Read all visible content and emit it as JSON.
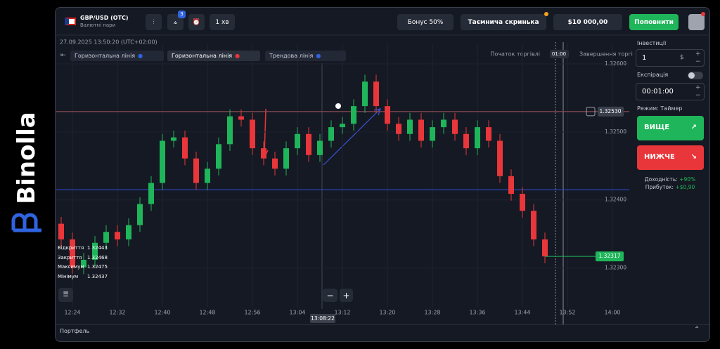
{
  "brand": "Binolla",
  "header": {
    "pair": "GBP/USD (OTC)",
    "pair_sub": "Валютні пари",
    "alerts_badge": "3",
    "timeframe": "1 хв",
    "bonus": "Бонус 50%",
    "mystery_box": "Таємнича скринька",
    "balance": "$10 000,00",
    "deposit": "Поповнити"
  },
  "chart_data": {
    "type": "candlestick",
    "datetime": "27.09.2025  13:50:20  (UTC+02:00)",
    "drawings": [
      "Горизонтальна лінія",
      "Горизонтальна лінія",
      "Трендова лінія"
    ],
    "trade_start": "Початок торгівлі",
    "timer": "01:00",
    "trade_end": "Завершення торгі",
    "x_labels": [
      "12:24",
      "12:32",
      "12:40",
      "12:48",
      "12:56",
      "13:04",
      "13:12",
      "13:20",
      "13:28",
      "13:36",
      "13:44",
      "13:52",
      "14:00"
    ],
    "crosshair_time": "13:08:22",
    "ylim": [
      1.3225,
      1.3263
    ],
    "yticks": [
      {
        "value": 1.326,
        "label": "1.32600"
      },
      {
        "value": 1.325,
        "label": "1.32500"
      },
      {
        "value": 1.324,
        "label": "1.32400"
      },
      {
        "value": 1.323,
        "label": "1.32300"
      }
    ],
    "up_color": "#1fb55a",
    "down_color": "#e8363a",
    "candles": [
      [
        1.32365,
        1.32375,
        1.32332,
        1.32342
      ],
      [
        1.32342,
        1.32352,
        1.32291,
        1.32301
      ],
      [
        1.32301,
        1.32322,
        1.32291,
        1.32312
      ],
      [
        1.32312,
        1.32347,
        1.32302,
        1.32337
      ],
      [
        1.32337,
        1.32363,
        1.32327,
        1.32353
      ],
      [
        1.32353,
        1.32363,
        1.32332,
        1.32342
      ],
      [
        1.32342,
        1.32373,
        1.32332,
        1.32363
      ],
      [
        1.32363,
        1.32404,
        1.32353,
        1.32394
      ],
      [
        1.32394,
        1.32435,
        1.32384,
        1.32425
      ],
      [
        1.32425,
        1.32497,
        1.32415,
        1.32487
      ],
      [
        1.32487,
        1.32502,
        1.32477,
        1.32492
      ],
      [
        1.32492,
        1.32502,
        1.32451,
        1.32461
      ],
      [
        1.32461,
        1.32471,
        1.32415,
        1.32425
      ],
      [
        1.32425,
        1.32456,
        1.32415,
        1.32446
      ],
      [
        1.32446,
        1.32492,
        1.32436,
        1.32482
      ],
      [
        1.32482,
        1.32533,
        1.32472,
        1.32523
      ],
      [
        1.32523,
        1.32533,
        1.32508,
        1.32518
      ],
      [
        1.32518,
        1.32528,
        1.32466,
        1.32476
      ],
      [
        1.32476,
        1.32486,
        1.32451,
        1.32461
      ],
      [
        1.32461,
        1.32471,
        1.32436,
        1.32446
      ],
      [
        1.32446,
        1.32486,
        1.32436,
        1.32476
      ],
      [
        1.32476,
        1.32507,
        1.32466,
        1.32497
      ],
      [
        1.32497,
        1.32507,
        1.32456,
        1.32466
      ],
      [
        1.32466,
        1.32497,
        1.32456,
        1.32487
      ],
      [
        1.32487,
        1.32517,
        1.32477,
        1.32507
      ],
      [
        1.32507,
        1.32522,
        1.32497,
        1.32512
      ],
      [
        1.32512,
        1.32548,
        1.32502,
        1.32538
      ],
      [
        1.32538,
        1.32584,
        1.32528,
        1.32574
      ],
      [
        1.32574,
        1.32584,
        1.32528,
        1.32538
      ],
      [
        1.32538,
        1.32548,
        1.32502,
        1.32512
      ],
      [
        1.32512,
        1.32522,
        1.32487,
        1.32497
      ],
      [
        1.32497,
        1.32528,
        1.32487,
        1.32518
      ],
      [
        1.32518,
        1.32528,
        1.32477,
        1.32487
      ],
      [
        1.32487,
        1.32517,
        1.32477,
        1.32507
      ],
      [
        1.32507,
        1.32528,
        1.32497,
        1.32518
      ],
      [
        1.32518,
        1.32528,
        1.32487,
        1.32497
      ],
      [
        1.32497,
        1.32507,
        1.32466,
        1.32476
      ],
      [
        1.32476,
        1.32517,
        1.32466,
        1.32507
      ],
      [
        1.32507,
        1.32517,
        1.32477,
        1.32487
      ],
      [
        1.32487,
        1.32497,
        1.32425,
        1.32435
      ],
      [
        1.32435,
        1.32445,
        1.32399,
        1.32409
      ],
      [
        1.32409,
        1.32419,
        1.32374,
        1.32384
      ],
      [
        1.32384,
        1.32394,
        1.32332,
        1.32342
      ],
      [
        1.32342,
        1.32352,
        1.32307,
        1.32317
      ]
    ],
    "current_price": {
      "value": 1.32317,
      "label": "1.32317"
    },
    "horizontal_lines": [
      {
        "value": 1.3253,
        "label": "1.32530",
        "color": "#8a4a55"
      },
      {
        "value": 1.32415,
        "color": "#2f47c9"
      }
    ],
    "ohlc_panel": [
      {
        "label": "Відкриття",
        "value": "1.32443"
      },
      {
        "label": "Закриття",
        "value": "1.32468"
      },
      {
        "label": "Максимум",
        "value": "1.32475"
      },
      {
        "label": "Мінімум",
        "value": "1.32437"
      }
    ]
  },
  "sidebar": {
    "investment_label": "Інвестиції",
    "investment": "1",
    "currency": "$",
    "expiration_label": "Експірація",
    "expiration": "00:01:00",
    "mode": "Режим: Таймер",
    "up": "ВИЩЕ",
    "down": "НИЖЧЕ",
    "yield_label": "Доходність:",
    "yield": "+90%",
    "profit_label": "Прибуток:",
    "profit": "+$0,90"
  },
  "footer": {
    "portfolio": "Портфель"
  }
}
